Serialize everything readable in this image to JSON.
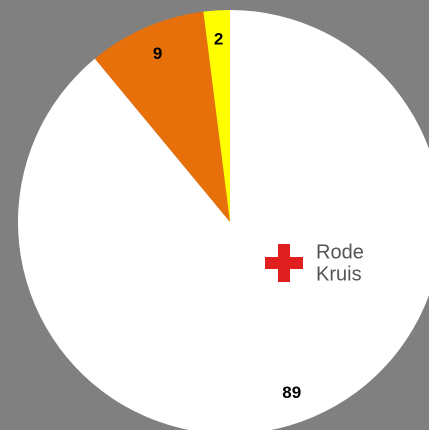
{
  "chart_data": {
    "type": "pie",
    "values": [
      89,
      9,
      2
    ],
    "colors": [
      "#ffffff",
      "#e8700a",
      "#ffff00"
    ],
    "logo": [
      "Rode",
      "Kruis"
    ]
  }
}
